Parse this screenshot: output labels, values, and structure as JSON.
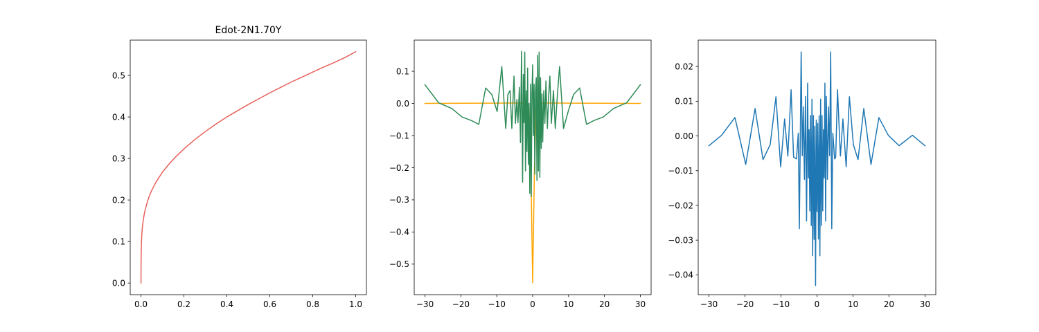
{
  "figure": {
    "background": "#ffffff"
  },
  "chart_data": [
    {
      "type": "line",
      "title": "Edot-2N1.70Y",
      "xlabel": "",
      "ylabel": "",
      "xlim": [
        -0.05,
        1.05
      ],
      "ylim": [
        -0.028,
        0.585
      ],
      "xticks": [
        0.0,
        0.2,
        0.4,
        0.6,
        0.8,
        1.0
      ],
      "xtick_labels": [
        "0.0",
        "0.2",
        "0.4",
        "0.6",
        "0.8",
        "1.0"
      ],
      "yticks": [
        0.0,
        0.1,
        0.2,
        0.3,
        0.4,
        0.5
      ],
      "ytick_labels": [
        "0.0",
        "0.1",
        "0.2",
        "0.3",
        "0.4",
        "0.5"
      ],
      "grid": false,
      "series": [
        {
          "color": "#e8605a",
          "x": [
            0,
            0.0005,
            0.001,
            0.002,
            0.003,
            0.005,
            0.0075,
            0.01,
            0.015,
            0.02,
            0.03,
            0.04,
            0.05,
            0.07,
            0.1,
            0.13,
            0.16,
            0.2,
            0.25,
            0.3,
            0.35,
            0.4,
            0.45,
            0.5,
            0.55,
            0.6,
            0.65,
            0.7,
            0.75,
            0.8,
            0.85,
            0.9,
            0.95,
            1.0
          ],
          "y": [
            0.0,
            0.047,
            0.07,
            0.094,
            0.108,
            0.124,
            0.138,
            0.149,
            0.165,
            0.177,
            0.196,
            0.211,
            0.223,
            0.243,
            0.267,
            0.286,
            0.303,
            0.323,
            0.345,
            0.365,
            0.383,
            0.4,
            0.415,
            0.43,
            0.444,
            0.458,
            0.471,
            0.484,
            0.496,
            0.508,
            0.52,
            0.531,
            0.543,
            0.557
          ]
        }
      ]
    },
    {
      "type": "line",
      "title": "",
      "xlabel": "",
      "ylabel": "",
      "xlim": [
        -33,
        33
      ],
      "ylim": [
        -0.595,
        0.197
      ],
      "xticks": [
        -30,
        -20,
        -10,
        0,
        10,
        20,
        30
      ],
      "xtick_labels": [
        "−30",
        "−20",
        "−10",
        "0",
        "10",
        "20",
        "30"
      ],
      "yticks": [
        0.1,
        0.0,
        -0.1,
        -0.2,
        -0.3,
        -0.4,
        -0.5
      ],
      "ytick_labels": [
        "0.1",
        "0.0",
        "−0.1",
        "−0.2",
        "−0.3",
        "−0.4",
        "−0.5"
      ],
      "grid": false,
      "series": [
        {
          "color": "#ffa500",
          "x": [
            -30,
            -20,
            -10,
            -5,
            -2,
            -1,
            -0.5,
            0,
            0.5,
            1,
            2,
            5,
            10,
            20,
            30
          ],
          "y": [
            0.0,
            0.0005,
            0.001,
            0.0015,
            0.0,
            -0.02,
            -0.2,
            -0.558,
            -0.2,
            -0.02,
            0.0,
            0.0015,
            0.001,
            0.0005,
            0.0
          ]
        },
        {
          "color": "#2e8b57",
          "x": [
            -30,
            -26.2,
            -22.5,
            -19.7,
            -17.1,
            -15.0,
            -13.1,
            -11.4,
            -9.9,
            -8.6,
            -7.5,
            -6.9,
            -6.3,
            -5.8,
            -5.2,
            -4.8,
            -4.4,
            -4.1,
            -3.7,
            -3.4,
            -3.1,
            -2.8,
            -2.6,
            -2.4,
            -2.2,
            -2.0,
            -1.8,
            -1.6,
            -1.4,
            -1.2,
            -1.0,
            -0.8,
            -0.6,
            -0.4,
            -0.2,
            0.0,
            0.2,
            0.4,
            0.6,
            0.8,
            1.0,
            1.2,
            1.4,
            1.6,
            1.8,
            2.0,
            2.2,
            2.4,
            2.6,
            2.8,
            3.1,
            3.4,
            3.7,
            4.1,
            4.4,
            4.8,
            5.2,
            5.8,
            6.3,
            6.9,
            7.5,
            8.6,
            9.9,
            11.4,
            13.1,
            15.0,
            17.1,
            19.7,
            22.5,
            26.2,
            30
          ],
          "y": [
            0.058,
            0.002,
            -0.016,
            -0.042,
            -0.053,
            -0.065,
            0.048,
            0.028,
            -0.025,
            0.115,
            -0.078,
            0.028,
            0.04,
            -0.078,
            0.085,
            -0.062,
            0.012,
            -0.06,
            0.05,
            -0.122,
            0.162,
            -0.245,
            0.09,
            -0.06,
            0.16,
            -0.21,
            0.04,
            -0.15,
            0.11,
            -0.19,
            0.0,
            -0.28,
            0.06,
            -0.29,
            0.03,
            0.12,
            -0.1,
            0.06,
            -0.22,
            0.04,
            0.08,
            -0.24,
            0.15,
            -0.21,
            0.16,
            -0.23,
            0.08,
            -0.14,
            0.03,
            -0.12,
            0.04,
            -0.062,
            0.07,
            -0.078,
            0.012,
            0.085,
            -0.062,
            0.04,
            -0.078,
            0.028,
            0.115,
            -0.078,
            -0.025,
            0.028,
            0.048,
            -0.065,
            -0.053,
            -0.042,
            -0.016,
            0.002,
            0.058
          ]
        }
      ]
    },
    {
      "type": "line",
      "title": "",
      "xlabel": "",
      "ylabel": "",
      "xlim": [
        -33,
        33
      ],
      "ylim": [
        -0.0457,
        0.0276
      ],
      "xticks": [
        -30,
        -20,
        -10,
        0,
        10,
        20,
        30
      ],
      "xtick_labels": [
        "−30",
        "−20",
        "−10",
        "0",
        "10",
        "20",
        "30"
      ],
      "yticks": [
        0.02,
        0.01,
        0.0,
        -0.01,
        -0.02,
        -0.03,
        -0.04
      ],
      "ytick_labels": [
        "0.02",
        "0.01",
        "0.00",
        "−0.01",
        "−0.02",
        "−0.03",
        "−0.04"
      ],
      "grid": false,
      "series": [
        {
          "color": "#1f77b4",
          "x": [
            -30,
            -26.5,
            -22.8,
            -19.8,
            -17.2,
            -15.0,
            -13.0,
            -11.4,
            -10.1,
            -9.0,
            -8.1,
            -7.2,
            -6.5,
            -5.7,
            -5.2,
            -4.9,
            -4.4,
            -4.1,
            -3.8,
            -3.5,
            -3.2,
            -2.9,
            -2.6,
            -2.4,
            -2.2,
            -2.0,
            -1.8,
            -1.6,
            -1.4,
            -1.2,
            -1.0,
            -0.8,
            -0.6,
            -0.4,
            -0.2,
            0.0,
            0.2,
            0.4,
            0.6,
            0.8,
            1.0,
            1.2,
            1.4,
            1.6,
            1.8,
            2.0,
            2.2,
            2.4,
            2.6,
            2.9,
            3.2,
            3.5,
            3.8,
            4.1,
            4.4,
            4.9,
            5.2,
            5.7,
            6.5,
            7.2,
            8.1,
            9.0,
            10.1,
            11.4,
            13.0,
            15.0,
            17.2,
            19.8,
            22.8,
            26.5,
            30
          ],
          "y": [
            -0.0028,
            0.0002,
            0.0053,
            -0.0082,
            0.0079,
            -0.0068,
            -0.0025,
            0.0113,
            -0.0089,
            0.0049,
            -0.0058,
            0.0133,
            -0.0061,
            -0.0066,
            0.0008,
            -0.0267,
            0.0242,
            -0.0057,
            0.0084,
            -0.0125,
            0.0114,
            -0.0245,
            0.0152,
            -0.0121,
            0.0018,
            -0.0216,
            0.0059,
            -0.0258,
            0.0106,
            -0.0345,
            0.0059,
            -0.0298,
            0.0028,
            -0.0431,
            0.0046,
            -0.0218,
            0.0036,
            -0.0297,
            0.0058,
            -0.0345,
            0.0106,
            -0.0258,
            0.0059,
            -0.0216,
            0.0018,
            -0.0121,
            0.0152,
            -0.0245,
            0.0114,
            -0.0125,
            0.0084,
            -0.0057,
            0.0242,
            -0.0267,
            0.0008,
            -0.0066,
            -0.0061,
            0.0133,
            -0.0058,
            0.0049,
            -0.0089,
            0.0113,
            -0.0025,
            -0.0068,
            0.0079,
            -0.0082,
            0.0053,
            0.0002,
            -0.0028,
            0.0002,
            -0.0028
          ]
        }
      ]
    }
  ]
}
